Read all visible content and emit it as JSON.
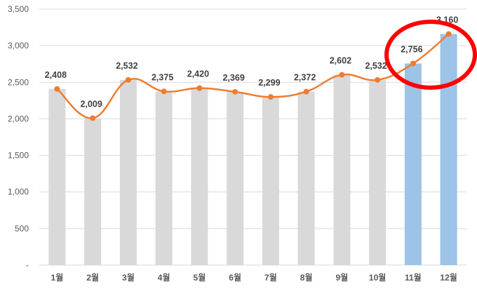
{
  "chart_data": {
    "type": "bar",
    "title": "",
    "xlabel": "",
    "ylabel": "",
    "categories": [
      "1월",
      "2월",
      "3월",
      "4월",
      "5월",
      "6월",
      "7월",
      "8월",
      "9월",
      "10월",
      "11월",
      "12월"
    ],
    "values": [
      2408,
      2009,
      2532,
      2375,
      2420,
      2369,
      2299,
      2372,
      2602,
      2532,
      2756,
      3160
    ],
    "value_labels": [
      "2,408",
      "2,009",
      "2,532",
      "2,375",
      "2,420",
      "2,369",
      "2,299",
      "2,372",
      "2,602",
      "2,532",
      "2,756",
      "3,160"
    ],
    "overlay_line": {
      "type": "line",
      "smooth": true,
      "same_values_as_bars": true
    },
    "ylim": [
      0,
      3500
    ],
    "yticks": [
      0,
      500,
      1000,
      1500,
      2000,
      2500,
      3000,
      3500
    ],
    "ytick_labels": [
      "-",
      "500",
      "1,000",
      "1,500",
      "2,000",
      "2,500",
      "3,000",
      "3,500"
    ],
    "grid": true,
    "highlighted_categories": [
      "11월",
      "12월"
    ],
    "annotation": "red circle around 11월–12월",
    "colors": {
      "bar": "#d9d9d9",
      "bar_highlight": "#9dc3e6",
      "line": "#ed7d31",
      "circle": "#ff0000",
      "grid": "#d9d9d9"
    }
  }
}
